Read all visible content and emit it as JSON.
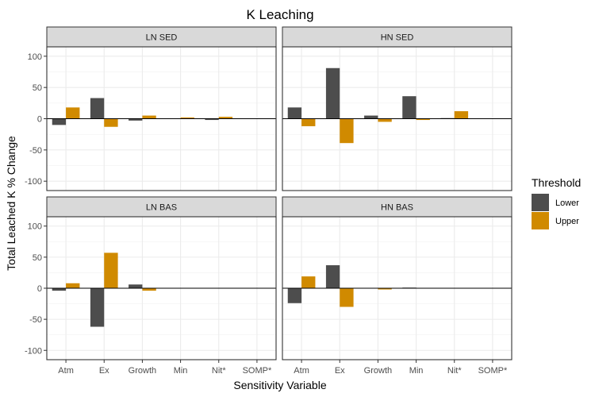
{
  "chart_data": {
    "type": "bar",
    "title": "K Leaching",
    "xlabel": "Sensitivity Variable",
    "ylabel": "Total Leached K % Change",
    "categories": [
      "Atm",
      "Ex",
      "Growth",
      "Min",
      "Nit*",
      "SOMP*"
    ],
    "ylim": [
      -115,
      115
    ],
    "yticks": [
      -100,
      -50,
      0,
      50,
      100
    ],
    "grid": true,
    "legend": {
      "title": "Threshold",
      "position": "right",
      "entries": [
        {
          "name": "Lower",
          "color": "#4d4d4d"
        },
        {
          "name": "Upper",
          "color": "#d08a00"
        }
      ]
    },
    "panels": [
      {
        "name": "LN SED",
        "series": [
          {
            "name": "Lower",
            "values": [
              -10,
              33,
              -3,
              0,
              -2,
              0
            ]
          },
          {
            "name": "Upper",
            "values": [
              18,
              -13,
              5,
              2,
              3,
              0
            ]
          }
        ]
      },
      {
        "name": "HN SED",
        "series": [
          {
            "name": "Lower",
            "values": [
              18,
              81,
              5,
              36,
              1,
              0
            ]
          },
          {
            "name": "Upper",
            "values": [
              -12,
              -39,
              -5,
              -2,
              12,
              0
            ]
          }
        ]
      },
      {
        "name": "LN BAS",
        "series": [
          {
            "name": "Lower",
            "values": [
              -4,
              -62,
              6,
              0,
              0,
              0
            ]
          },
          {
            "name": "Upper",
            "values": [
              8,
              57,
              -4,
              0,
              0,
              0
            ]
          }
        ]
      },
      {
        "name": "HN BAS",
        "series": [
          {
            "name": "Lower",
            "values": [
              -24,
              37,
              0,
              1,
              0,
              0
            ]
          },
          {
            "name": "Upper",
            "values": [
              19,
              -30,
              -2,
              0,
              0,
              0
            ]
          }
        ]
      }
    ]
  }
}
